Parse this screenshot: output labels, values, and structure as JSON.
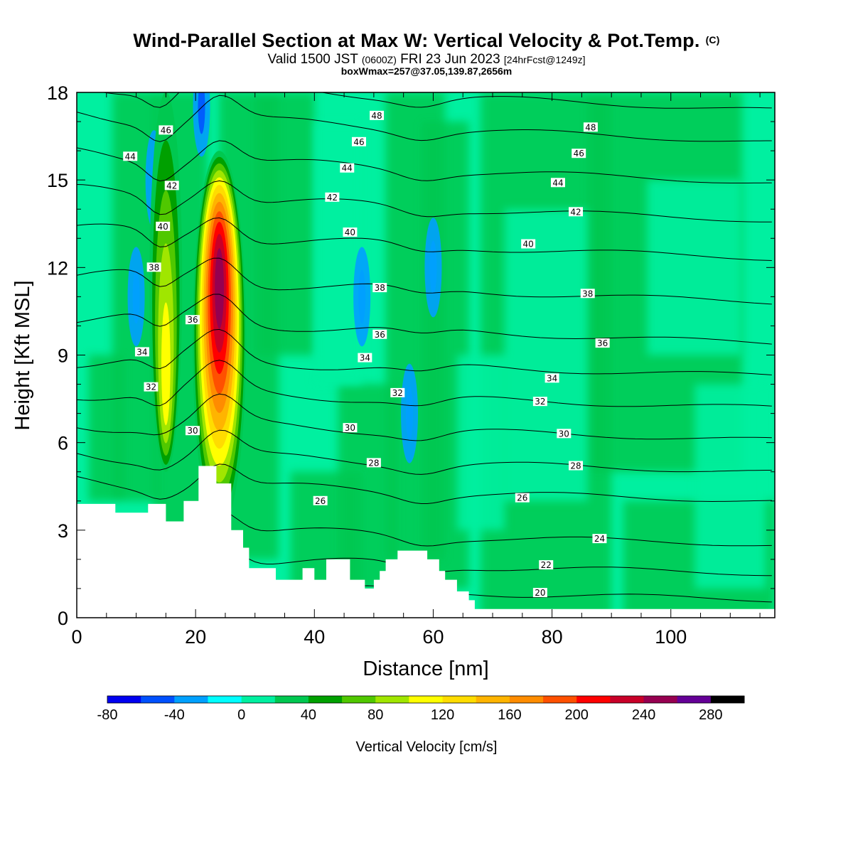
{
  "header": {
    "title": "Wind-Parallel Section at Max W: Vertical Velocity & Pot.Temp.",
    "copyright": "(C)",
    "valid_prefix": "Valid 1500 JST",
    "valid_utc": "(0600Z)",
    "valid_date": "FRI 23 Jun 2023",
    "forecast": "[24hrFcst@1249z]",
    "boxwmax": "boxWmax=257@37.05,139.87,2656m"
  },
  "colors": {
    "terrain": "#ffffff",
    "contour": "#000000",
    "palette": [
      "#0000f0",
      "#0050ff",
      "#00a0ff",
      "#00ffff",
      "#00f0a0",
      "#00c850",
      "#00a000",
      "#50c800",
      "#a0e600",
      "#ffff00",
      "#ffdc00",
      "#ffb400",
      "#ff8c00",
      "#ff5000",
      "#ff0000",
      "#c80028",
      "#960050",
      "#640096"
    ]
  },
  "chart_data": {
    "type": "heatmap",
    "xlabel": "Distance [nm]",
    "ylabel": "Height [Kft MSL]",
    "xlim": [
      0,
      117.5
    ],
    "ylim": [
      0,
      18
    ],
    "xticks": [
      "0",
      "20",
      "40",
      "60",
      "80",
      "100"
    ],
    "yticks": [
      "0",
      "3",
      "6",
      "9",
      "12",
      "15",
      "18"
    ],
    "colorbar": {
      "label": "Vertical Velocity [cm/s]",
      "levels": [
        -80,
        -60,
        -40,
        -20,
        0,
        20,
        40,
        60,
        80,
        100,
        120,
        140,
        160,
        180,
        200,
        220,
        240,
        260,
        280,
        300
      ],
      "tick_labels": [
        "-80",
        "-40",
        "0",
        "40",
        "80",
        "120",
        "160",
        "200",
        "240",
        "280"
      ]
    },
    "terrain_profile": [
      [
        0,
        3.9
      ],
      [
        6.5,
        3.9
      ],
      [
        6.5,
        3.6
      ],
      [
        12,
        3.6
      ],
      [
        12,
        3.9
      ],
      [
        15,
        3.9
      ],
      [
        15,
        3.3
      ],
      [
        18,
        3.3
      ],
      [
        18,
        4
      ],
      [
        20.5,
        4
      ],
      [
        20.5,
        5.2
      ],
      [
        23.5,
        5.2
      ],
      [
        23.5,
        4.6
      ],
      [
        26,
        4.6
      ],
      [
        26,
        3
      ],
      [
        28,
        3
      ],
      [
        28,
        2.4
      ],
      [
        29,
        2.4
      ],
      [
        29,
        1.7
      ],
      [
        33.5,
        1.7
      ],
      [
        33.5,
        1.3
      ],
      [
        38,
        1.3
      ],
      [
        38,
        1.7
      ],
      [
        40,
        1.7
      ],
      [
        40,
        1.3
      ],
      [
        42,
        1.3
      ],
      [
        42,
        2
      ],
      [
        46,
        2
      ],
      [
        46,
        1.3
      ],
      [
        48.5,
        1.3
      ],
      [
        48.5,
        1
      ],
      [
        50,
        1
      ],
      [
        50,
        1.3
      ],
      [
        51,
        1.3
      ],
      [
        51,
        1.6
      ],
      [
        52,
        1.6
      ],
      [
        52,
        2
      ],
      [
        54,
        2
      ],
      [
        54,
        2.3
      ],
      [
        59,
        2.3
      ],
      [
        59,
        2
      ],
      [
        61,
        2
      ],
      [
        61,
        1.6
      ],
      [
        62,
        1.6
      ],
      [
        62,
        1.3
      ],
      [
        64,
        1.3
      ],
      [
        64,
        0.9
      ],
      [
        66,
        0.9
      ],
      [
        66,
        0.6
      ],
      [
        67,
        0.6
      ],
      [
        67,
        0.3
      ],
      [
        117.5,
        0.3
      ]
    ],
    "updraft_cores": [
      {
        "x": 24,
        "y": 11.5,
        "w_max": 257,
        "x_extent": [
          20,
          29
        ],
        "y_extent": [
          3,
          16
        ]
      },
      {
        "x": 15,
        "y": 8,
        "w_max": 110,
        "x_extent": [
          12.5,
          18
        ],
        "y_extent": [
          5,
          18
        ]
      }
    ],
    "downdraft_cores": [
      {
        "x": 10,
        "y": 11,
        "w_min": -40
      },
      {
        "x": 13,
        "y": 15,
        "w_min": -40
      },
      {
        "x": 21,
        "y": 17.5,
        "w_min": -60
      },
      {
        "x": 48,
        "y": 11,
        "w_min": -40
      },
      {
        "x": 56,
        "y": 7,
        "w_min": -40
      },
      {
        "x": 60,
        "y": 12,
        "w_min": -40
      }
    ],
    "theta_contours": [
      {
        "level": 20,
        "base": 0.6,
        "labels": [
          [
            78,
            0.85
          ]
        ]
      },
      {
        "level": 22,
        "base": 1.5,
        "labels": [
          [
            79,
            1.8
          ]
        ]
      },
      {
        "level": 24,
        "base": 2.5,
        "labels": [
          [
            88,
            2.7
          ]
        ]
      },
      {
        "level": 26,
        "base": 4.0,
        "labels": [
          [
            41,
            4.0
          ],
          [
            75,
            4.1
          ]
        ]
      },
      {
        "level": 28,
        "base": 5.0,
        "labels": [
          [
            50,
            5.3
          ],
          [
            84,
            5.2
          ]
        ]
      },
      {
        "level": 30,
        "base": 6.1,
        "labels": [
          [
            19.5,
            6.4
          ],
          [
            46,
            6.5
          ],
          [
            82,
            6.3
          ]
        ]
      },
      {
        "level": 32,
        "base": 7.2,
        "labels": [
          [
            12.5,
            7.9
          ],
          [
            54,
            7.7
          ],
          [
            78,
            7.4
          ]
        ]
      },
      {
        "level": 34,
        "base": 8.3,
        "labels": [
          [
            11,
            9.1
          ],
          [
            48.5,
            8.9
          ],
          [
            80,
            8.2
          ]
        ]
      },
      {
        "level": 36,
        "base": 9.4,
        "labels": [
          [
            19.5,
            10.2
          ],
          [
            51,
            9.7
          ],
          [
            88.5,
            9.4
          ]
        ]
      },
      {
        "level": 38,
        "base": 10.8,
        "labels": [
          [
            13,
            12.0
          ],
          [
            51,
            11.3
          ],
          [
            86,
            11.1
          ]
        ]
      },
      {
        "level": 40,
        "base": 12.3,
        "labels": [
          [
            14.5,
            13.4
          ],
          [
            46,
            13.2
          ],
          [
            76,
            12.8
          ]
        ]
      },
      {
        "level": 42,
        "base": 13.6,
        "labels": [
          [
            16,
            14.8
          ],
          [
            43,
            14.4
          ],
          [
            84,
            13.9
          ]
        ]
      },
      {
        "level": 44,
        "base": 14.9,
        "labels": [
          [
            9,
            15.8
          ],
          [
            45.5,
            15.4
          ],
          [
            81,
            14.9
          ]
        ]
      },
      {
        "level": 46,
        "base": 16.3,
        "labels": [
          [
            15,
            16.7
          ],
          [
            47.5,
            16.3
          ],
          [
            84.5,
            15.9
          ]
        ]
      },
      {
        "level": 48,
        "base": 17.4,
        "labels": [
          [
            50.5,
            17.2
          ],
          [
            86.5,
            16.8
          ]
        ]
      }
    ]
  }
}
